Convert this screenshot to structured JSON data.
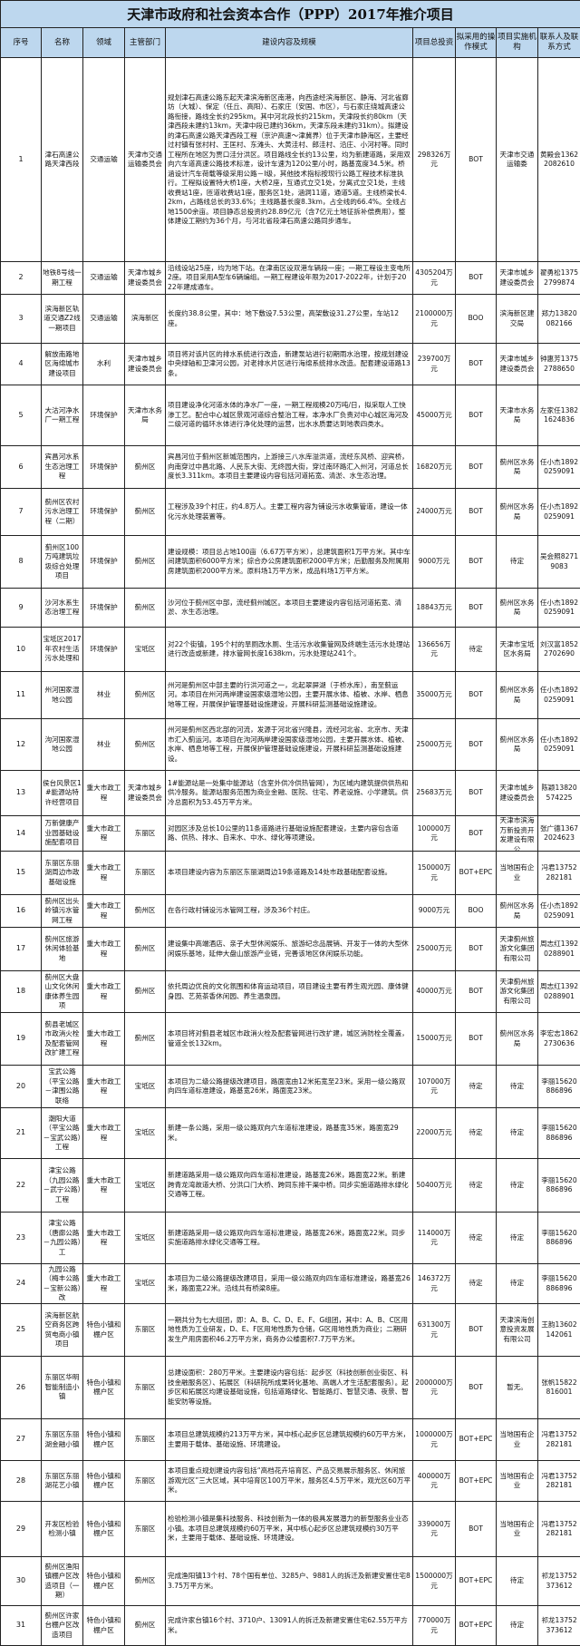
{
  "title": "天津市政府和社会资本合作（PPP）2017年推介项目",
  "headers": [
    "序号",
    "名称",
    "领域",
    "主管部门",
    "建设内容及规模",
    "项目总投资",
    "拟采用的操作模式",
    "项目实施机构",
    "联系人及联系方式"
  ],
  "rows": [
    {
      "no": "1",
      "name": "津石高速公路天津西段",
      "field": "交通运输",
      "dept": "天津市交通运输委员会",
      "content": "规划津石高速公路东起天津滨海新区南港，向西途经滨海新区、静海、河北省廊坊（大城）、保定（任丘、高阳）、石家庄（安国、市区），与石家庄绕城高速公路衔接，路线全长约295km。其中河北段长约215km，天津段长约80km（天津西段未建约13km，天津中段已建约36km，天津东段未建约31km）。拟建设的津石高速公路天津西段工程（京沪高速～津冀界）位于天津市静海区，主要经过村镇有张村村、王匡村、东滩头、大黄洼村、郎洼村、沿庄、小河村等。同时工程所在地区为贾口洼分洪区。项目路线全长约13公里，均为新建道路，采用双向六车道高速公路技术标准，设计车速为120公里/小时，路基宽度34.5米。桥涵设计汽车荷载等级采用公路－I级，其他技术指标按现行公路工程技术标准执行。工程拟设置特大桥1座，大桥2座，互通式立交1处，分离式立交1处，主线收费站1座，匝道收费站1座，服务区1处，涵洞11道，通道5道。主线桥梁长4.2km，占路线总长的33.6%；主线路基长度8.3km，占全线的66.4%。全线占地1500余亩。项目静态总投资约28.89亿元（含7亿元土地征拆补偿费用），整体建设工期约为36个月，与河北省段津石高速公路同步通车。",
      "invest": "298326万元",
      "mode": "BOT",
      "agency": "天津市交通运输委",
      "contact": "黄殿会13622082610"
    },
    {
      "no": "2",
      "name": "地铁8号线一期工程",
      "field": "交通运输",
      "dept": "天津市城乡建设委员会",
      "content": "沿线设站25座，均为地下站。在津南区设双港车辆段一座；一期工程设主变电所2座。项目采用A型车6辆编组。一期工程建设年限为2017-2022年，计划于2022年建成通车。",
      "invest": "4305204万元",
      "mode": "BOT",
      "agency": "天津市城乡建设委员会",
      "contact": "翟勇松13752799874"
    },
    {
      "no": "3",
      "name": "滨海新区轨道交通Z2线一期项目",
      "field": "交通运输",
      "dept": "滨海新区",
      "content": "长度约38.8公里，其中：地下敷设7.53公里，高架敷设31.27公里，车站12座。",
      "invest": "2100000万元",
      "mode": "BOO",
      "agency": "滨海新区建交局",
      "contact": "郑力13820082166"
    },
    {
      "no": "4",
      "name": "解放南路地区海绵城市建设项目",
      "field": "水利",
      "dept": "天津市城乡建设委员会",
      "content": "项目将对该片区的排水系统进行改造，新建泵站进行初期雨水治理，按规划建设中央绿轴和卫津河公园，对老排水片区进行海绵系统排水改造。配套建设道路13条。",
      "invest": "239700万元",
      "mode": "BOT",
      "agency": "天津市城乡建设委员会",
      "contact": "钟惠芳13752788650"
    },
    {
      "no": "5",
      "name": "大沽河净水厂一期工程",
      "field": "环境保护",
      "dept": "天津市水务局",
      "content": "项目建设净化河道水体的净水厂一座，一期工程规模20万吨/日，拟采取人工快渗工艺。配合中心城区景观河道综合整治工程，本净水厂负责对中心城区海河及二级河道的循环水体进行净化处理的运营，出水水质要达到地表四类水。",
      "invest": "45000万元",
      "mode": "BOT",
      "agency": "天津市水务局",
      "contact": "左家任13821624836"
    },
    {
      "no": "6",
      "name": "宾昌河水系生态治理工程",
      "field": "环境保护",
      "dept": "蓟州区",
      "content": "宾昌河位于蓟州区新城范围内，上游接三八水库溢洪道，流经东风桥、迎宾桥，向南穿过中昌北路、人民东大街、无终园大街，穿过南环路汇入州河，河道总长度长3.311km。本项目主要建设内容包括河道拓宽、清淤、水生态治理。",
      "invest": "16820万元",
      "mode": "BOT",
      "agency": "蓟州区水务局",
      "contact": "任小杰18920259091"
    },
    {
      "no": "7",
      "name": "蓟州区农村污水治理工程（二期）",
      "field": "环境保护",
      "dept": "蓟州区",
      "content": "工程涉及39个村庄，约4.8万人。主要工程内容为铺设污水收集管道，建设一体化污水处理装置等。",
      "invest": "24000万元",
      "mode": "BOT",
      "agency": "蓟州区水务局",
      "contact": "任小杰18920259091"
    },
    {
      "no": "8",
      "name": "蓟州区100万吨建筑垃圾综合处理项目",
      "field": "环境保护",
      "dept": "蓟州区",
      "content": "建设规模：项目总占地100亩（6.67万平方米），总建筑面积1万平方米。其中车间建筑面积6000平方米；综合办公房建筑面积2000平方米；后勤服务及附属用房建筑面积2000平方米。原料场1万平方米，成品料场1万平方米。",
      "invest": "9000万元",
      "mode": "BOT",
      "agency": "待定",
      "contact": "吴会照82719083"
    },
    {
      "no": "9",
      "name": "沙河水系生态治理工程",
      "field": "环境保护",
      "dept": "蓟州区",
      "content": "沙河位于蓟州区中部，流经蓟州城区。本项目主要建设内容包括河道拓宽、清淤、水生态治理。",
      "invest": "18843万元",
      "mode": "BOT",
      "agency": "蓟州区水务局",
      "contact": "任小杰18920259091"
    },
    {
      "no": "10",
      "name": "宝坻区2017年农村生活污水处理和",
      "field": "环境保护",
      "dept": "宝坻区",
      "content": "对22个街镇，195个村的旱厕改水厕、生活污水收集管网及终端生活污水处理站进行改造或新建，排水管网长度1638km，污水处理站241个。",
      "invest": "136656万元",
      "mode": "待定",
      "agency": "天津市宝坻区水务局",
      "contact": "刘汉富18522702690"
    },
    {
      "no": "11",
      "name": "州河国家湿地公园",
      "field": "林业",
      "dept": "蓟州区",
      "content": "州河是蓟州区中部主要的行洪河道之一，北起翠屏湖（于桥水库），南至蓟运河。本项目在州河两岸建设国家级湿地公园，主要开展水体、植被、水岸、栖息地等工程，开展保护管理基础设施建设，开展科研监测基础设施建设。",
      "invest": "35000万元",
      "mode": "BOT",
      "agency": "蓟州区水务局",
      "contact": "任小杰18920259091"
    },
    {
      "no": "12",
      "name": "泃河国家湿地公园",
      "field": "林业",
      "dept": "蓟州区",
      "content": "州河是蓟州区西北部的河流，发源于河北省兴隆县，流经河北省、北京市、天津市汇入蓟运河。本项目在泃河两岸建设国家级湿地公园，主要开展水体、植被、水岸、栖息地等工程，开展保护管理基础设施建设，开展科研监测基础设施建设。",
      "invest": "25000万元",
      "mode": "BOT",
      "agency": "蓟州区水务局",
      "contact": "任小杰18920259091"
    },
    {
      "no": "13",
      "name": "侯台风景区1#能源站特许经营项目",
      "field": "重大市政工程",
      "dept": "天津市城乡建设委员会",
      "content": "1#能源站是一处集中能源站（含室外供冷供热管网），为区域内建筑提供供热和供冷服务。能源站服务范围为商业金融、医院、住宅、养老设施、小学建筑。供冷总面积为53.45万平方米。",
      "invest": "25683万元",
      "mode": "BOT",
      "agency": "天津市城乡建设委员会",
      "contact": "陈颖13820574225"
    },
    {
      "no": "14",
      "name": "万新健康产业园基础设施配套项目",
      "field": "重大市政工程",
      "dept": "东丽区",
      "content": "对园区涉及总长10公里的11条道路进行基础设施配套建设，主要内容包含道路、供热、排水、自来水、中水、绿化等项建设。",
      "invest": "100000万元",
      "mode": "BOT",
      "agency": "天津市滨海万新投资开发建设有限公",
      "contact": "张广德13672024623"
    },
    {
      "no": "15",
      "name": "东丽区东丽湖周边市政基础设施",
      "field": "重大市政工程",
      "dept": "东丽区",
      "content": "本项目建设内容为东丽区东丽湖周边19条道路及14处市政基础配套设施。",
      "invest": "150000万元",
      "mode": "BOT+EPC",
      "agency": "当地国有企业",
      "contact": "冯君13752282181"
    },
    {
      "no": "16",
      "name": "蓟州区出头岭镇污水管网工程",
      "field": "重大市政工程",
      "dept": "蓟州区",
      "content": "在各行政村铺设污水管网工程，涉及36个村庄。",
      "invest": "9000万元",
      "mode": "BOO",
      "agency": "蓟州区水务局",
      "contact": "任小杰18920259091"
    },
    {
      "no": "17",
      "name": "蓟州区旅游休闲体验基地",
      "field": "重大市政工程",
      "dept": "蓟州区",
      "content": "建设集中高端酒店、亲子大型休闲娱乐、旅游纪念品展销、开发于一体的大型休闲娱乐基地，延伸大盘山旅游产业链，完善该地区休闲娱乐功能。",
      "invest": "25000万元",
      "mode": "BOT",
      "agency": "天津蓟州旅游文化集团有限公司",
      "contact": "周志红13920288901"
    },
    {
      "no": "18",
      "name": "蓟州区大盘山文化休闲康体养生园项",
      "field": "重大市政工程",
      "dept": "蓟州区",
      "content": "依托周边优良的文化氛围和体育运动项目，项目建设主要有养生观光园、康体健身园、艺苑茶香休闲园、养生温泉园。",
      "invest": "40000万元",
      "mode": "BOT",
      "agency": "天津蓟州旅游文化集团有限公司",
      "contact": "周志红13920288901"
    },
    {
      "no": "19",
      "name": "蓟县老城区市政消火栓及配套管网改扩建工程",
      "field": "重大市政工程",
      "dept": "蓟州区",
      "content": "本项目将对蓟县老城区市政消火栓及配套管网进行改扩建，城区消防栓全覆盖，管道全长132km。",
      "invest": "15000万元",
      "mode": "BOT",
      "agency": "蓟州区水务局",
      "contact": "李宏志18622730636"
    },
    {
      "no": "20",
      "name": "宝武公路（平宝公路－津围公路联络",
      "field": "重大市政工程",
      "dept": "宝坻区",
      "content": "本项目为二级公路提级改建项目，路面宽由12米拓宽至23米。采用一级公路双向四车道标准建设，路基宽26米，路面宽23米。",
      "invest": "107000万元",
      "mode": "待定",
      "agency": "待定",
      "contact": "李丽15620886896"
    },
    {
      "no": "21",
      "name": "潮阳大道（平宝公路－宝武公路）工程",
      "field": "重大市政工程",
      "dept": "宝坻区",
      "content": "新建一条公路，采用一级公路双向六车道标准建设，路基宽35米，路面宽29米。",
      "invest": "22000万元",
      "mode": "待定",
      "agency": "待定",
      "contact": "李丽15620886896"
    },
    {
      "no": "22",
      "name": "津宝公路（九园公路－武宁公路）工程",
      "field": "重大市政工程",
      "dept": "宝坻区",
      "content": "新建道路采用一级公路双向四车道标准建设，路基宽26米，路面宽22米。新建跨青龙湾故道大桥、分洪口门大桥、跨同东排干渠中桥。同步实施道路排水绿化交通等工程。",
      "invest": "50400万元",
      "mode": "待定",
      "agency": "待定",
      "contact": "李丽15620886896"
    },
    {
      "no": "23",
      "name": "津宝公路（唐廊公路－九园公路）工",
      "field": "重大市政工程",
      "dept": "宝坻区",
      "content": "新建道路采用一级公路双向四车道标准建设，路基宽26米，路面宽22米。同步实施道路排水绿化交通等工程。",
      "invest": "114000万元",
      "mode": "待定",
      "agency": "待定",
      "contact": "李丽15620886896"
    },
    {
      "no": "24",
      "name": "九园公路（梅丰公路－宝新公路）改",
      "field": "重大市政工程",
      "dept": "宝坻区",
      "content": "本项目为二级公路提级改建项目，采用一级公路双向四车道标准建设，路基宽26米，路面宽22米。沿线共有桥梁8座。",
      "invest": "146372万元",
      "mode": "待定",
      "agency": "待定",
      "contact": "李丽15620886896"
    },
    {
      "no": "25",
      "name": "滨海新区航空商务区跨贸电商小镇项目",
      "field": "特色小镇和棚户区",
      "dept": "东丽区",
      "content": "一期共分为七大组团，即：A、B、C、D、E、F、G组团，其中：A、B、C区用地性质为工业研发，D、E、F区用地性质为仓储，G区用地性质为商业；二期研发生产用房面积46.2万平方米，商务办公楼面积7.7万平方米。",
      "invest": "631300万元",
      "mode": "BOT",
      "agency": "天津滨海创意投资发展有限公司",
      "contact": "王韵13602142061"
    },
    {
      "no": "26",
      "name": "东丽区华明智能制造小镇",
      "field": "特色小镇和棚户区",
      "dept": "东丽区",
      "content": "总建设面积：280万平米。主要建设内容包括：起步区（科技创新创业街区、科技金融服务区）、拓展区（科研院所成果转化基地、高端人才生活配套服务）。起步区和拓展区均建设基础设施，包括道路绿化、智能路灯、智慧交通、夜景、智能安防等设施。",
      "invest": "2000000万元",
      "mode": "BOT",
      "agency": "暂无。",
      "contact": "张帆15822816001"
    },
    {
      "no": "27",
      "name": "东丽区东丽湖金融小镇",
      "field": "特色小镇和棚户区",
      "dept": "东丽区",
      "content": "本项目总建筑规模约213万平方米，其中核心起步区总建筑规模约60万平方米，主要用于载体、基础设施、环境建设。",
      "invest": "1000000万元",
      "mode": "BOT+EPC",
      "agency": "当地国有企业",
      "contact": "冯君13752282181"
    },
    {
      "no": "28",
      "name": "东丽区东丽湖花艺小镇",
      "field": "特色小镇和棚户区",
      "dept": "东丽区",
      "content": "本项目重点规划建设内容包括“高档花卉培育区、产品交易展示服务区、休闲旅游观光区”三大区域，其中培育区100万平米，服务区4.5万平米，观光区60万平米。",
      "invest": "400000万元",
      "mode": "BOT+EPC",
      "agency": "当地国有企业",
      "contact": "冯君13752282181"
    },
    {
      "no": "29",
      "name": "开发区检验检测小镇",
      "field": "特色小镇和棚户区",
      "dept": "东丽区",
      "content": "检验检测小镇是集科技服务、科技创新为一体的极具发展潜力的新型服务业业态小镇。本项目总建筑规模约60万平米，其中核心起步区总建筑规模约30万平米，主要用于载体、基础设施、环境建设。",
      "invest": "339000万元",
      "mode": "BOT",
      "agency": "当地国有企业",
      "contact": "冯君13752282181"
    },
    {
      "no": "30",
      "name": "蓟州区渔阳镇棚户区改造项目（一期）",
      "field": "特色小镇和棚户区",
      "dept": "蓟州区",
      "content": "完成渔阳镇13个村、78个国有单位、3285户、9881人的拆迁及新建安置住宅83.75万平方米。",
      "invest": "1500000万元",
      "mode": "BOT+EPC",
      "agency": "待定",
      "contact": "祁龙13752373612"
    },
    {
      "no": "31",
      "name": "蓟州区许家台棚户区改造项目",
      "field": "特色小镇和棚户区",
      "dept": "蓟州区",
      "content": "完成许家台镇16个村、3710户、13091人的拆迁及新建安置住宅62.55万平方米。",
      "invest": "770000万元",
      "mode": "BOT+EPC",
      "agency": "待定",
      "contact": "祁龙13752373612"
    }
  ]
}
